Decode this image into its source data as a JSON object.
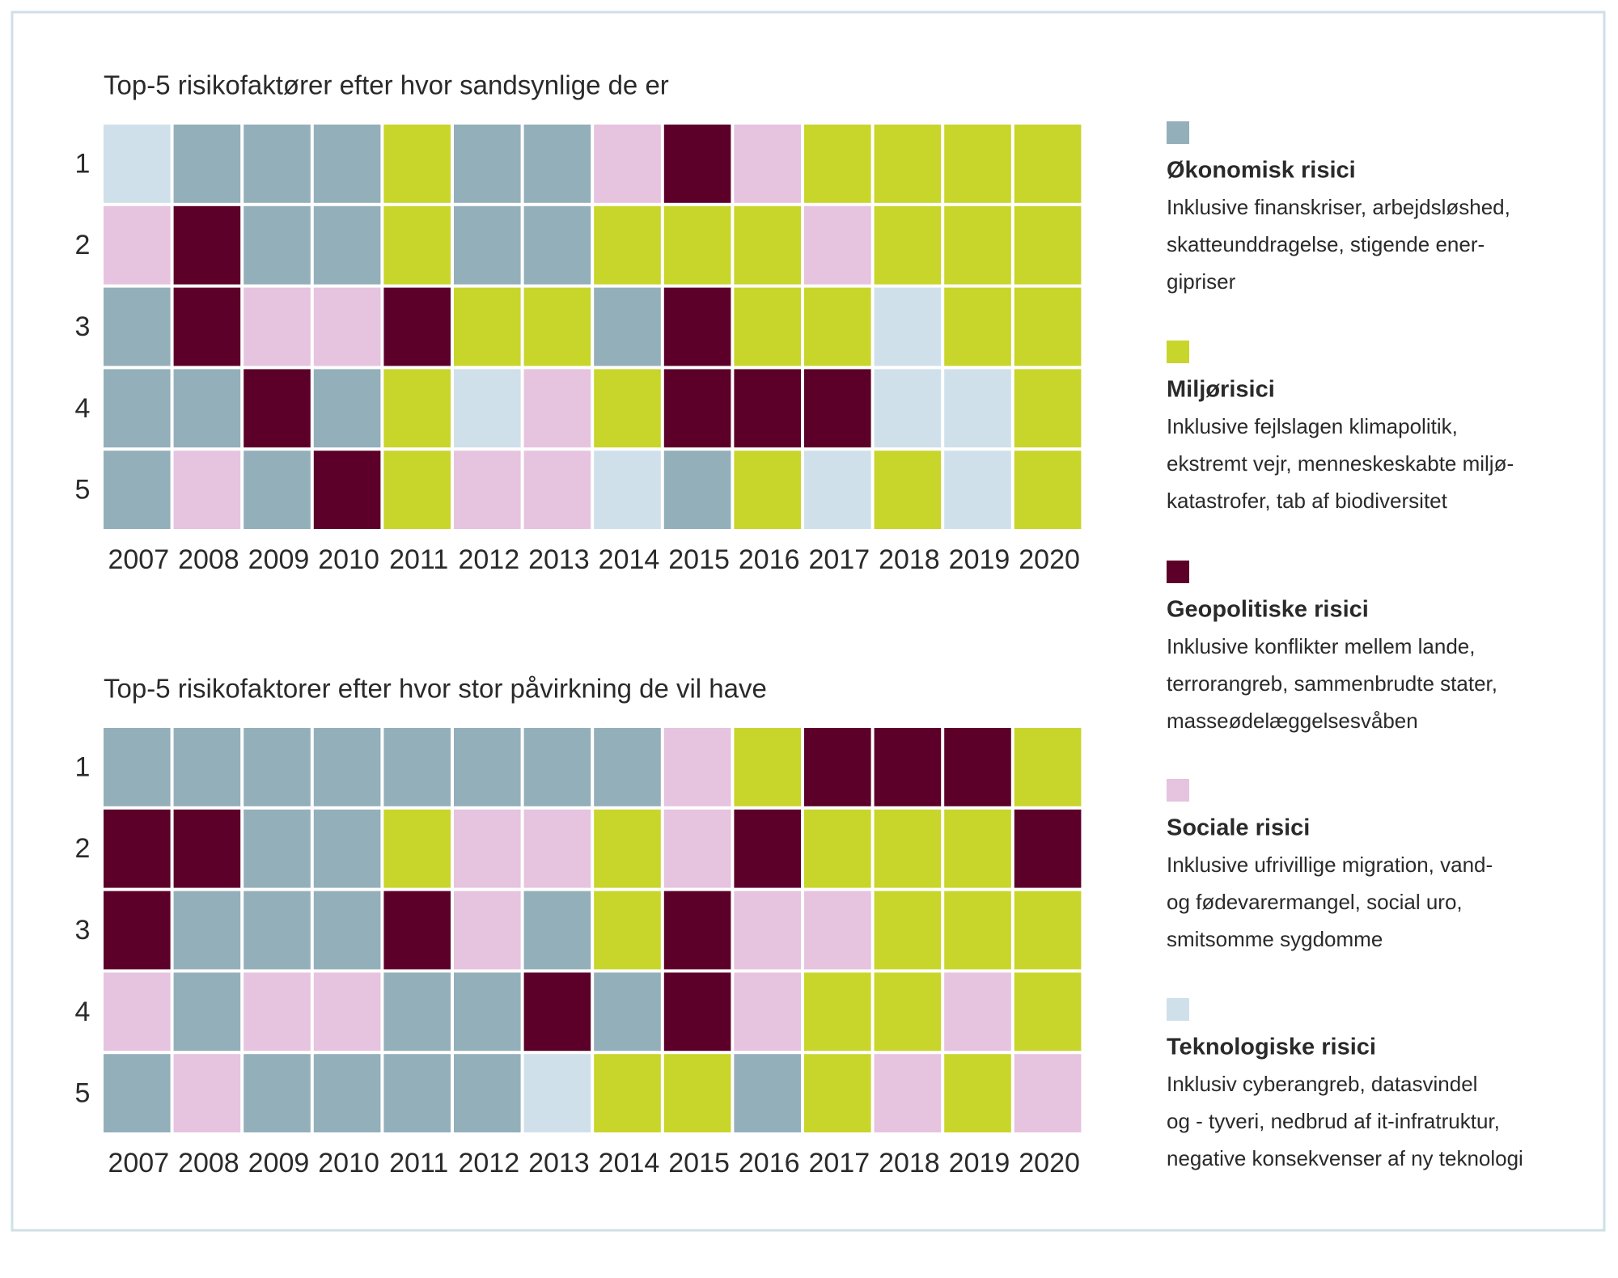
{
  "chart_data": [
    {
      "type": "categorical-grid",
      "title": "Top-5 risikofaktører efter hvor sandsynlige de er",
      "rows": [
        "1",
        "2",
        "3",
        "4",
        "5"
      ],
      "categories": [
        "2007",
        "2008",
        "2009",
        "2010",
        "2011",
        "2012",
        "2013",
        "2014",
        "2015",
        "2016",
        "2017",
        "2018",
        "2019",
        "2020"
      ],
      "cells": [
        [
          4,
          0,
          0,
          0,
          1,
          0,
          0,
          3,
          2,
          3,
          1,
          1,
          1,
          1
        ],
        [
          3,
          2,
          0,
          0,
          1,
          0,
          0,
          1,
          1,
          1,
          3,
          1,
          1,
          1
        ],
        [
          0,
          2,
          3,
          3,
          2,
          1,
          1,
          0,
          2,
          1,
          1,
          4,
          1,
          1
        ],
        [
          0,
          0,
          2,
          0,
          1,
          4,
          3,
          1,
          2,
          2,
          2,
          4,
          4,
          1
        ],
        [
          0,
          3,
          0,
          2,
          1,
          3,
          3,
          4,
          0,
          1,
          4,
          1,
          4,
          1
        ]
      ]
    },
    {
      "type": "categorical-grid",
      "title": "Top-5 risikofaktorer efter hvor stor påvirkning de vil have",
      "rows": [
        "1",
        "2",
        "3",
        "4",
        "5"
      ],
      "categories": [
        "2007",
        "2008",
        "2009",
        "2010",
        "2011",
        "2012",
        "2013",
        "2014",
        "2015",
        "2016",
        "2017",
        "2018",
        "2019",
        "2020"
      ],
      "cells": [
        [
          0,
          0,
          0,
          0,
          0,
          0,
          0,
          0,
          3,
          1,
          2,
          2,
          2,
          1
        ],
        [
          2,
          2,
          0,
          0,
          1,
          3,
          3,
          1,
          3,
          2,
          1,
          1,
          1,
          2
        ],
        [
          2,
          0,
          0,
          0,
          2,
          3,
          0,
          1,
          2,
          3,
          3,
          1,
          1,
          1
        ],
        [
          3,
          0,
          3,
          3,
          0,
          0,
          2,
          0,
          2,
          3,
          1,
          1,
          3,
          1
        ],
        [
          0,
          3,
          0,
          0,
          0,
          0,
          4,
          1,
          1,
          0,
          1,
          3,
          1,
          3
        ]
      ]
    }
  ],
  "legend": [
    {
      "name": "Økonomisk risici",
      "color": "#93afba",
      "lines": [
        "Inklusive finanskriser, arbejdsløshed,",
        "skatteunddragelse, stigende ener-",
        "gipriser"
      ]
    },
    {
      "name": "Miljørisici",
      "color": "#c8d52b",
      "lines": [
        "Inklusive fejlslagen klimapolitik,",
        "ekstremt vejr, menneskeskabte miljø-",
        "katastrofer, tab af biodiversitet"
      ]
    },
    {
      "name": "Geopolitiske risici",
      "color": "#5c0029",
      "lines": [
        "Inklusive konflikter mellem lande,",
        "terrorangreb, sammenbrudte stater,",
        "masseødelæggelsesvåben"
      ]
    },
    {
      "name": "Sociale risici",
      "color": "#e6c3de",
      "lines": [
        "Inklusive ufrivillige migration, vand-",
        "og fødevarermangel, social uro,",
        "smitsomme sygdomme"
      ]
    },
    {
      "name": "Teknologiske risici",
      "color": "#d0e0ea",
      "lines": [
        "Inklusiv cyberangreb, datasvindel",
        "og - tyveri, nedbrud af it-infratruktur,",
        "negative konsekvenser af ny teknologi"
      ]
    }
  ]
}
